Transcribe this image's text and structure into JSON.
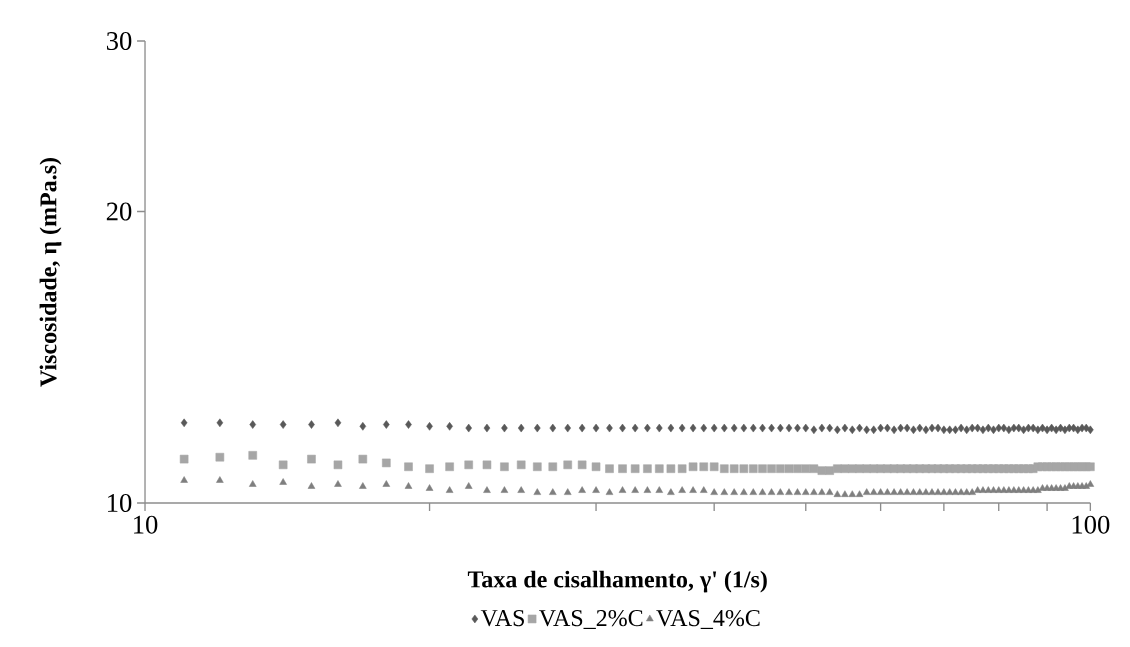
{
  "chart_data": {
    "type": "scatter",
    "xlabel": "Taxa de cisalhamento, γ' (1/s)",
    "ylabel": "Viscosidade, η (mPa.s)",
    "log": "xy",
    "xlim": [
      10,
      100
    ],
    "ylim": [
      10,
      30
    ],
    "xticks": [
      10,
      {
        "value": 20,
        "label": null
      },
      {
        "value": 30,
        "label": null
      },
      {
        "value": 40,
        "label": null
      },
      {
        "value": 50,
        "label": null
      },
      {
        "value": 60,
        "label": null
      },
      {
        "value": 70,
        "label": null
      },
      {
        "value": 80,
        "label": null
      },
      {
        "value": 90,
        "label": null
      },
      100
    ],
    "yticks": [
      10,
      20,
      30
    ],
    "grid": false,
    "legend": "bottom",
    "x": [
      11,
      12,
      13,
      14,
      15,
      16,
      17,
      18,
      19,
      20,
      21,
      22,
      23,
      24,
      25,
      26,
      27,
      28,
      29,
      30,
      31,
      32,
      33,
      34,
      35,
      36,
      37,
      38,
      39,
      40,
      41,
      42,
      43,
      44,
      45,
      46,
      47,
      48,
      49,
      50,
      51,
      52,
      53,
      54,
      55,
      56,
      57,
      58,
      59,
      60,
      61,
      62,
      63,
      64,
      65,
      66,
      67,
      68,
      69,
      70,
      71,
      72,
      73,
      74,
      75,
      76,
      77,
      78,
      79,
      80,
      81,
      82,
      83,
      84,
      85,
      86,
      87,
      88,
      89,
      90,
      91,
      92,
      93,
      94,
      95,
      96,
      97,
      98,
      99,
      100
    ],
    "series": [
      {
        "name": "VAS",
        "color": "#595959",
        "marker": "diamond",
        "values": [
          12.1,
          12.1,
          12.05,
          12.05,
          12.05,
          12.1,
          12.0,
          12.05,
          12.05,
          12.0,
          12.0,
          11.95,
          11.95,
          11.95,
          11.95,
          11.95,
          11.95,
          11.95,
          11.95,
          11.95,
          11.95,
          11.95,
          11.95,
          11.95,
          11.95,
          11.95,
          11.95,
          11.95,
          11.95,
          11.95,
          11.95,
          11.95,
          11.95,
          11.95,
          11.95,
          11.95,
          11.95,
          11.95,
          11.95,
          11.95,
          11.9,
          11.95,
          11.95,
          11.9,
          11.95,
          11.9,
          11.95,
          11.9,
          11.9,
          11.95,
          11.95,
          11.9,
          11.95,
          11.95,
          11.9,
          11.95,
          11.9,
          11.95,
          11.95,
          11.9,
          11.9,
          11.9,
          11.95,
          11.9,
          11.95,
          11.95,
          11.9,
          11.95,
          11.9,
          11.95,
          11.95,
          11.9,
          11.95,
          11.95,
          11.9,
          11.95,
          11.95,
          11.9,
          11.95,
          11.9,
          11.95,
          11.9,
          11.95,
          11.9,
          11.95,
          11.95,
          11.9,
          11.95,
          11.95,
          11.9
        ]
      },
      {
        "name": "VAS_2%C",
        "color": "#a6a6a6",
        "marker": "square",
        "values": [
          11.1,
          11.15,
          11.2,
          10.95,
          11.1,
          10.95,
          11.1,
          11.0,
          10.9,
          10.85,
          10.9,
          10.95,
          10.95,
          10.9,
          10.95,
          10.9,
          10.9,
          10.95,
          10.95,
          10.9,
          10.85,
          10.85,
          10.85,
          10.85,
          10.85,
          10.85,
          10.85,
          10.9,
          10.9,
          10.9,
          10.85,
          10.85,
          10.85,
          10.85,
          10.85,
          10.85,
          10.85,
          10.85,
          10.85,
          10.85,
          10.85,
          10.8,
          10.8,
          10.85,
          10.85,
          10.85,
          10.85,
          10.85,
          10.85,
          10.85,
          10.85,
          10.85,
          10.85,
          10.85,
          10.85,
          10.85,
          10.85,
          10.85,
          10.85,
          10.85,
          10.85,
          10.85,
          10.85,
          10.85,
          10.85,
          10.85,
          10.85,
          10.85,
          10.85,
          10.85,
          10.85,
          10.85,
          10.85,
          10.85,
          10.85,
          10.85,
          10.85,
          10.9,
          10.9,
          10.9,
          10.9,
          10.9,
          10.9,
          10.9,
          10.9,
          10.9,
          10.9,
          10.9,
          10.9,
          10.9
        ]
      },
      {
        "name": "VAS_4%C",
        "color": "#7f7f7f",
        "marker": "triangle",
        "values": [
          10.55,
          10.55,
          10.45,
          10.5,
          10.4,
          10.45,
          10.4,
          10.45,
          10.4,
          10.35,
          10.3,
          10.4,
          10.3,
          10.3,
          10.3,
          10.25,
          10.25,
          10.25,
          10.3,
          10.3,
          10.25,
          10.3,
          10.3,
          10.3,
          10.3,
          10.25,
          10.3,
          10.3,
          10.3,
          10.25,
          10.25,
          10.25,
          10.25,
          10.25,
          10.25,
          10.25,
          10.25,
          10.25,
          10.25,
          10.25,
          10.25,
          10.25,
          10.25,
          10.2,
          10.2,
          10.2,
          10.2,
          10.25,
          10.25,
          10.25,
          10.25,
          10.25,
          10.25,
          10.25,
          10.25,
          10.25,
          10.25,
          10.25,
          10.25,
          10.25,
          10.25,
          10.25,
          10.25,
          10.25,
          10.25,
          10.3,
          10.3,
          10.3,
          10.3,
          10.3,
          10.3,
          10.3,
          10.3,
          10.3,
          10.3,
          10.3,
          10.3,
          10.3,
          10.35,
          10.35,
          10.35,
          10.35,
          10.35,
          10.35,
          10.4,
          10.4,
          10.4,
          10.4,
          10.4,
          10.45
        ]
      }
    ]
  }
}
